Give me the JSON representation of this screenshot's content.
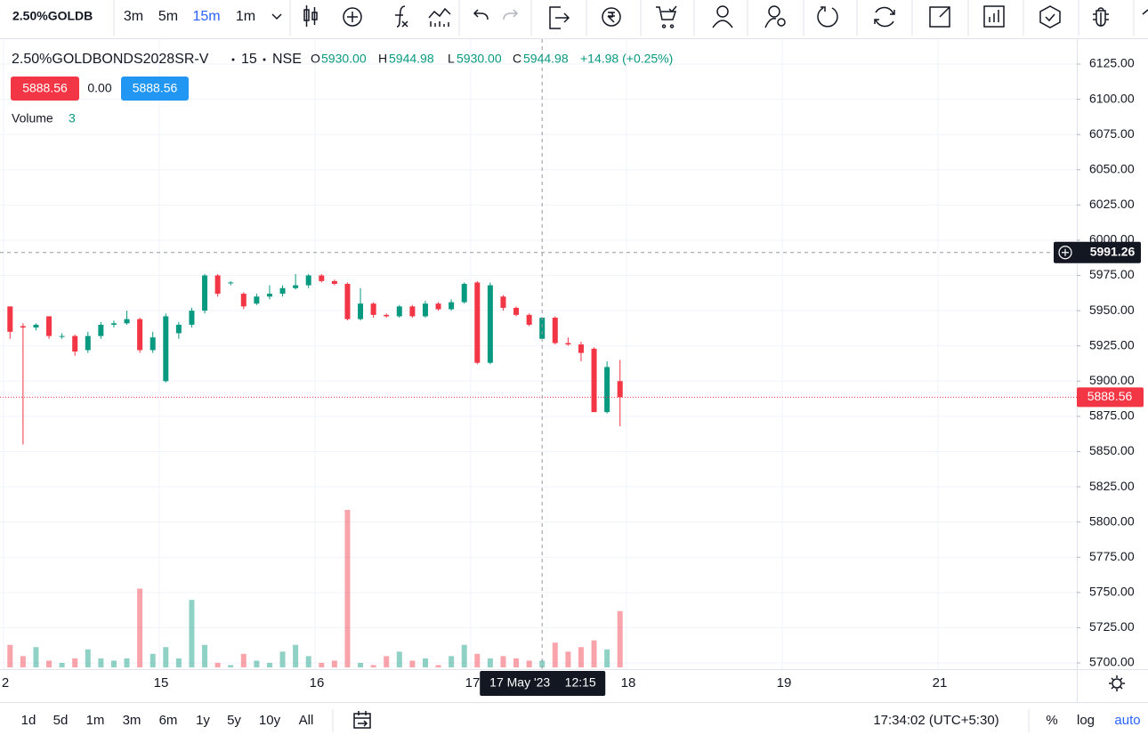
{
  "toolbar": {
    "symbol": "2.50%GOLDB",
    "intervals": [
      "3m",
      "5m",
      "15m",
      "1m"
    ],
    "active_interval_index": 2
  },
  "legend": {
    "symbol": "2.50%GOLDBONDS2028SR-V",
    "interval": "15",
    "exchange": "NSE",
    "ohlc": [
      {
        "label": "O",
        "value": "5930.00"
      },
      {
        "label": "H",
        "value": "5944.98"
      },
      {
        "label": "L",
        "value": "5930.00"
      },
      {
        "label": "C",
        "value": "5944.98"
      }
    ],
    "change": "+14.98 (+0.25%)",
    "spread": "0.00",
    "volume_label": "Volume"
  },
  "chart_data": {
    "type": "candlestick",
    "open": [
      5953,
      5939,
      5938,
      5946,
      5932,
      5932,
      5922,
      5932,
      5940,
      5941,
      5944,
      5922,
      5900,
      5934,
      5940,
      5950,
      5975,
      5970,
      5962,
      5955,
      5960,
      5962,
      5966,
      5968,
      5975,
      5971,
      5969,
      5944,
      5955,
      5947,
      5946,
      5953,
      5946,
      5955,
      5951,
      5956,
      5970,
      5913,
      5960,
      5952,
      5947,
      5930,
      5945,
      5927,
      5926,
      5923,
      5878,
      5900
    ],
    "high": [
      5953,
      5941,
      5941,
      5946,
      5934,
      5933,
      5935,
      5942,
      5943,
      5950,
      5945,
      5935,
      5948,
      5942,
      5952,
      5976,
      5976,
      5971,
      5963,
      5962,
      5968,
      5968,
      5976,
      5976,
      5976,
      5972,
      5970,
      5966,
      5956,
      5948,
      5954,
      5954,
      5957,
      5956,
      5958,
      5970,
      5971,
      5970,
      5961,
      5953,
      5948,
      5944.98,
      5946,
      5931,
      5928,
      5924,
      5914,
      5915
    ],
    "low": [
      5930,
      5855,
      5936,
      5930,
      5930,
      5918,
      5920,
      5930,
      5938,
      5940,
      5920,
      5920,
      5899,
      5930,
      5938,
      5948,
      5960,
      5968,
      5951,
      5954,
      5958,
      5960,
      5965,
      5966,
      5970,
      5968,
      5943,
      5943,
      5945,
      5945,
      5945,
      5945,
      5945,
      5950,
      5950,
      5955,
      5912,
      5912,
      5950,
      5946,
      5939,
      5930,
      5926,
      5925,
      5914,
      5878,
      5877,
      5868
    ],
    "close": [
      5935,
      5938,
      5940,
      5932,
      5932,
      5921,
      5932,
      5940,
      5941,
      5944,
      5922,
      5931,
      5946,
      5940,
      5950,
      5975,
      5962,
      5970,
      5953,
      5960,
      5962,
      5966,
      5968,
      5975,
      5971,
      5969,
      5944,
      5955,
      5947,
      5946,
      5953,
      5946,
      5955,
      5951,
      5956,
      5969,
      5913,
      5968,
      5952,
      5947,
      5940,
      5944.98,
      5927,
      5926,
      5920,
      5878,
      5910,
      5888.56
    ],
    "volume": [
      10,
      5,
      9,
      3,
      2,
      4,
      8,
      4,
      3,
      4,
      35,
      6,
      9,
      4,
      30,
      10,
      2,
      1,
      6,
      3,
      2,
      7,
      10,
      5,
      2,
      3,
      70,
      2,
      1,
      5,
      7,
      3,
      4,
      1,
      5,
      10,
      6,
      4,
      5,
      4,
      3,
      3,
      11,
      7,
      9,
      12,
      8,
      25
    ],
    "up_color": "#089981",
    "down_color": "#f23645",
    "ylim": [
      5700,
      6125
    ],
    "yticks": [
      {
        "value": 5700,
        "label": "5700.00"
      },
      {
        "value": 5725,
        "label": "5725.00"
      },
      {
        "value": 5750,
        "label": "5750.00"
      },
      {
        "value": 5775,
        "label": "5775.00"
      },
      {
        "value": 5800,
        "label": "5800.00"
      },
      {
        "value": 5825,
        "label": "5825.00"
      },
      {
        "value": 5850,
        "label": "5850.00"
      },
      {
        "value": 5875,
        "label": "5875.00"
      },
      {
        "value": 5900,
        "label": "5900.00"
      },
      {
        "value": 5925,
        "label": "5925.00"
      },
      {
        "value": 5950,
        "label": "5950.00"
      },
      {
        "value": 5975,
        "label": "5975.00"
      },
      {
        "value": 6000,
        "label": "6000.00"
      },
      {
        "value": 6025,
        "label": "6025.00"
      },
      {
        "value": 6050,
        "label": "6050.00"
      },
      {
        "value": 6075,
        "label": "6075.00"
      },
      {
        "value": 6100,
        "label": "6100.00"
      },
      {
        "value": 6125,
        "label": "6125.00"
      }
    ],
    "xtick_labels": [
      "2",
      "15",
      "16",
      "17",
      "18",
      "19",
      "21"
    ],
    "crosshair_price": 5991.26,
    "crosshair_date": "17 May '23",
    "crosshair_time": "12:15",
    "grid": true
  },
  "footer": {
    "ranges": [
      "1d",
      "5d",
      "1m",
      "3m",
      "6m",
      "1y",
      "5y",
      "10y",
      "All"
    ],
    "clock": "17:34:02 (UTC+5:30)",
    "percent": "%",
    "log": "log",
    "auto": "auto"
  }
}
